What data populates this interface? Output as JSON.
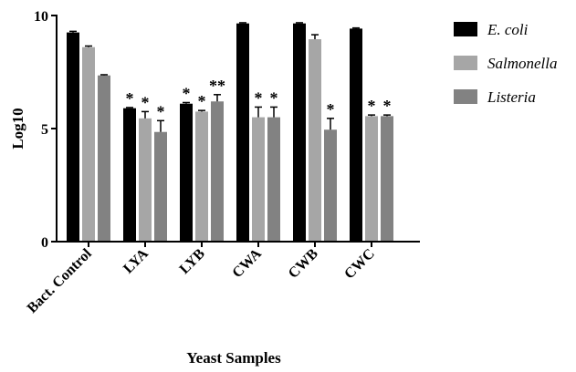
{
  "chart_data": {
    "type": "bar",
    "title": "",
    "xlabel": "Yeast Samples",
    "ylabel": "Log10",
    "ylim": [
      0,
      10
    ],
    "yticks": [
      0,
      5,
      10
    ],
    "grid": false,
    "legend_position": "top-right",
    "categories": [
      "Bact. Control",
      "LYA",
      "LYB",
      "CWA",
      "CWB",
      "CWC"
    ],
    "series": [
      {
        "name": "E. coli",
        "color": "#000000",
        "values": [
          9.25,
          5.9,
          6.1,
          9.65,
          9.65,
          9.42
        ],
        "errors": [
          0.05,
          0.03,
          0.05,
          0.03,
          0.03,
          0.03
        ],
        "significance": [
          "",
          "*",
          "*",
          "",
          "",
          ""
        ]
      },
      {
        "name": "Salmonella",
        "color": "#a6a6a6",
        "values": [
          8.6,
          5.45,
          5.75,
          5.5,
          8.95,
          5.55
        ],
        "errors": [
          0.05,
          0.3,
          0.05,
          0.45,
          0.2,
          0.05
        ],
        "significance": [
          "",
          "*",
          "*",
          "*",
          "",
          "*"
        ]
      },
      {
        "name": "Listeria",
        "color": "#828282",
        "values": [
          7.35,
          4.85,
          6.2,
          5.5,
          4.95,
          5.55
        ],
        "errors": [
          0.03,
          0.5,
          0.3,
          0.45,
          0.5,
          0.05
        ],
        "significance": [
          "",
          "*",
          "**",
          "*",
          "*",
          "*"
        ]
      }
    ]
  }
}
